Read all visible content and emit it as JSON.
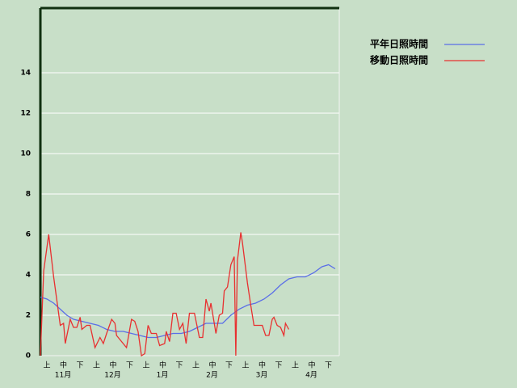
{
  "chart_data": {
    "type": "line",
    "xlim": [
      0,
      180
    ],
    "ylim": [
      0,
      17.2
    ],
    "yticks": [
      0,
      2,
      4,
      6,
      8,
      10,
      12,
      14
    ],
    "grid": true,
    "xtick_labels": [
      "上",
      "中",
      "下",
      "上",
      "中",
      "下",
      "上",
      "中",
      "下",
      "上",
      "中",
      "下",
      "上",
      "中",
      "下",
      "上",
      "中",
      "下"
    ],
    "month_labels": [
      "11月",
      "12月",
      "1月",
      "2月",
      "3月",
      "4月"
    ],
    "series": [
      {
        "name": "平年日照時間",
        "color": "#5a6ee8",
        "x": [
          0,
          4,
          8,
          12,
          16,
          20,
          25,
          30,
          35,
          40,
          45,
          50,
          55,
          60,
          65,
          70,
          75,
          80,
          85,
          90,
          95,
          100,
          105,
          110,
          115,
          120,
          125,
          130,
          135,
          140,
          145,
          150,
          155,
          160,
          165,
          170,
          174,
          178
        ],
        "values": [
          2.9,
          2.8,
          2.6,
          2.3,
          2.0,
          1.8,
          1.7,
          1.6,
          1.5,
          1.3,
          1.2,
          1.2,
          1.1,
          1.0,
          0.9,
          0.9,
          1.0,
          1.1,
          1.1,
          1.2,
          1.4,
          1.6,
          1.6,
          1.6,
          2.0,
          2.3,
          2.5,
          2.6,
          2.8,
          3.1,
          3.5,
          3.8,
          3.9,
          3.9,
          4.1,
          4.4,
          4.5,
          4.3
        ]
      },
      {
        "name": "移動日照時間",
        "color": "#e83030",
        "x": [
          0,
          2,
          5,
          8,
          12,
          14,
          15,
          18,
          20,
          22,
          24,
          25,
          28,
          30,
          33,
          36,
          38,
          40,
          43,
          45,
          46,
          52,
          55,
          57,
          59,
          61,
          63,
          65,
          67,
          70,
          72,
          75,
          76,
          78,
          80,
          82,
          84,
          86,
          88,
          90,
          93,
          96,
          98,
          100,
          102,
          103,
          106,
          108,
          110,
          111,
          113,
          115,
          117,
          118,
          119,
          121,
          122,
          125,
          127,
          129,
          134,
          136,
          138,
          140,
          141,
          143,
          145,
          147,
          148,
          150
        ],
        "values": [
          0,
          4.2,
          6.0,
          3.9,
          1.5,
          1.6,
          0.6,
          1.8,
          1.4,
          1.4,
          1.9,
          1.3,
          1.5,
          1.5,
          0.4,
          0.9,
          0.6,
          1.1,
          1.8,
          1.6,
          1.0,
          0.4,
          1.8,
          1.7,
          1.2,
          0,
          0.1,
          1.5,
          1.1,
          1.1,
          0.5,
          0.6,
          1.2,
          0.7,
          2.1,
          2.1,
          1.3,
          1.6,
          0.6,
          2.1,
          2.1,
          0.9,
          0.9,
          2.8,
          2.2,
          2.6,
          1.1,
          2.0,
          2.1,
          3.2,
          3.4,
          4.5,
          4.9,
          0,
          4.7,
          6.1,
          5.6,
          3.6,
          2.5,
          1.5,
          1.5,
          1.0,
          1.0,
          1.8,
          1.9,
          1.5,
          1.4,
          1.0,
          1.6,
          1.3
        ]
      }
    ]
  }
}
